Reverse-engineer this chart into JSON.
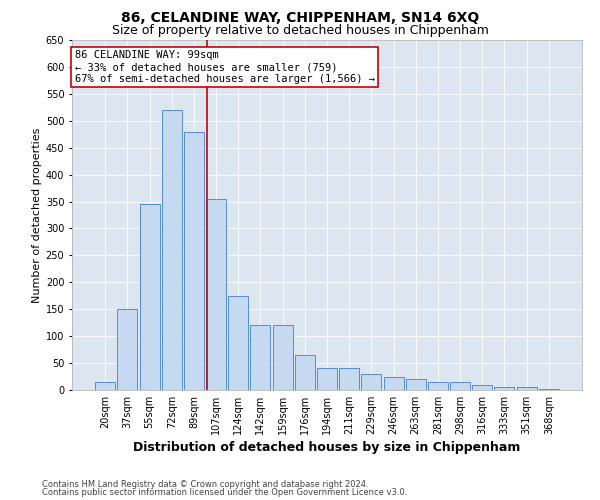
{
  "title1": "86, CELANDINE WAY, CHIPPENHAM, SN14 6XQ",
  "title2": "Size of property relative to detached houses in Chippenham",
  "xlabel": "Distribution of detached houses by size in Chippenham",
  "ylabel": "Number of detached properties",
  "categories": [
    "20sqm",
    "37sqm",
    "55sqm",
    "72sqm",
    "89sqm",
    "107sqm",
    "124sqm",
    "142sqm",
    "159sqm",
    "176sqm",
    "194sqm",
    "211sqm",
    "229sqm",
    "246sqm",
    "263sqm",
    "281sqm",
    "298sqm",
    "316sqm",
    "333sqm",
    "351sqm",
    "368sqm"
  ],
  "values": [
    15,
    150,
    345,
    520,
    480,
    355,
    175,
    120,
    120,
    65,
    40,
    40,
    30,
    25,
    20,
    15,
    15,
    10,
    5,
    5,
    2
  ],
  "bar_color": "#c5d9f1",
  "bar_edge_color": "#538dd5",
  "vline_pos": 4.58,
  "vline_color": "#cc0000",
  "annotation_title": "86 CELANDINE WAY: 99sqm",
  "annotation_line1": "← 33% of detached houses are smaller (759)",
  "annotation_line2": "67% of semi-detached houses are larger (1,566) →",
  "annotation_box_facecolor": "#ffffff",
  "annotation_box_edgecolor": "#cc0000",
  "footer1": "Contains HM Land Registry data © Crown copyright and database right 2024.",
  "footer2": "Contains public sector information licensed under the Open Government Licence v3.0.",
  "ylim": [
    0,
    650
  ],
  "yticks": [
    0,
    50,
    100,
    150,
    200,
    250,
    300,
    350,
    400,
    450,
    500,
    550,
    600,
    650
  ],
  "bg_color": "#ffffff",
  "plot_bg_color": "#dce6f1",
  "grid_color": "#ffffff",
  "title1_fontsize": 10,
  "title2_fontsize": 9,
  "ylabel_fontsize": 8,
  "xlabel_fontsize": 9,
  "tick_fontsize": 7,
  "footer_fontsize": 6,
  "annot_fontsize": 7.5
}
